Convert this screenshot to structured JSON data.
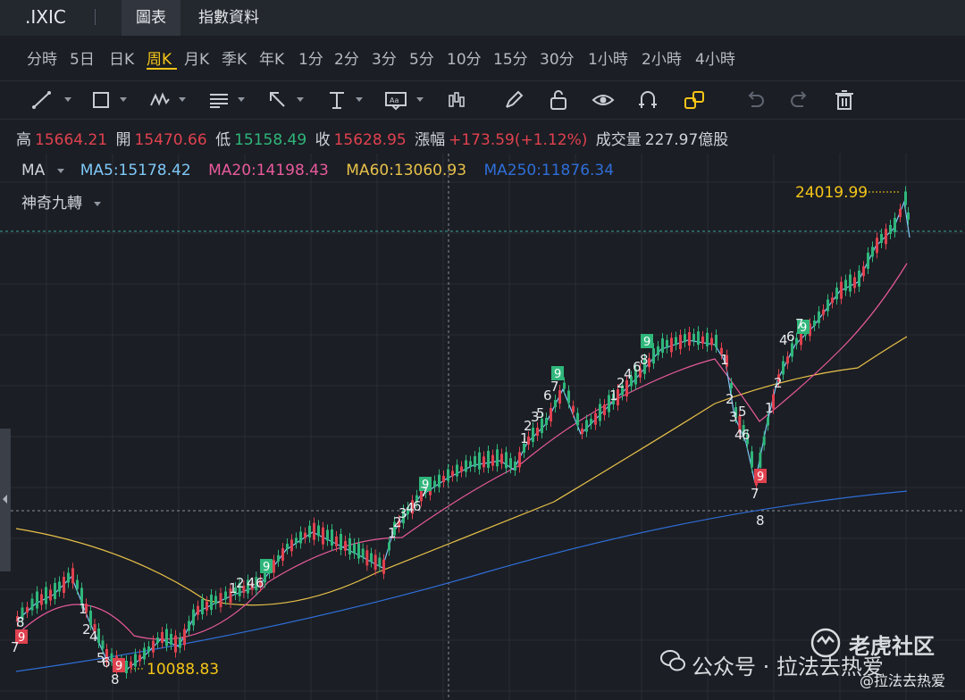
{
  "header": {
    "symbol": ".IXIC",
    "tabs": [
      {
        "label": "圖表",
        "active": true
      },
      {
        "label": "指數資料",
        "active": false
      }
    ]
  },
  "periods": {
    "items": [
      "分時",
      "5日",
      "日K",
      "周K",
      "月K",
      "季K",
      "年K",
      "1分",
      "2分",
      "3分",
      "5分",
      "10分",
      "15分",
      "30分",
      "1小時",
      "2小時",
      "4小時"
    ],
    "active": "周K"
  },
  "toolbar": {
    "tools": [
      "line-tool-icon",
      "rectangle-tool-icon",
      "pattern-tool-icon",
      "fib-tool-icon",
      "arrow-tool-icon",
      "text-tool-icon",
      "label-tool-icon",
      "candle-tool-icon",
      "pen-icon",
      "lock-icon",
      "eye-icon",
      "magnet-icon",
      "link-layout-icon",
      "undo-icon",
      "redo-icon",
      "trash-icon"
    ]
  },
  "quote": {
    "high_label": "高",
    "high": "15664.21",
    "open_label": "開",
    "open": "15470.66",
    "low_label": "低",
    "low": "15158.49",
    "close_label": "收",
    "close": "15628.95",
    "change_label": "漲幅",
    "change": "+173.59(+1.12%)",
    "volume_label": "成交量",
    "volume": "227.97億股"
  },
  "indicators": {
    "ma_label": "MA",
    "ma5": "MA5:15178.42",
    "ma20": "MA20:14198.43",
    "ma60": "MA60:13060.93",
    "ma250": "MA250:11876.34",
    "nine_turn_label": "神奇九轉",
    "colors": {
      "ma5": "#7fc8f8",
      "ma20": "#e85a9c",
      "ma60": "#e8c14a",
      "ma250": "#2f6ed8",
      "up": "#2fb67b",
      "down": "#e0414f",
      "accent": "#f5c518"
    }
  },
  "chart": {
    "high_marker": "24019.99",
    "low_marker": "10088.83",
    "td_counts_top": [
      "1",
      "2",
      "3",
      "4",
      "5",
      "6",
      "7",
      "8",
      "9"
    ],
    "td_counts_bottom": [
      "1",
      "2",
      "3",
      "4",
      "5",
      "6",
      "7",
      "8",
      "9"
    ]
  },
  "watermark": {
    "text": "公众号 · 拉法去热爱",
    "brand": "老虎社区",
    "handle": "@拉法去热爱"
  }
}
